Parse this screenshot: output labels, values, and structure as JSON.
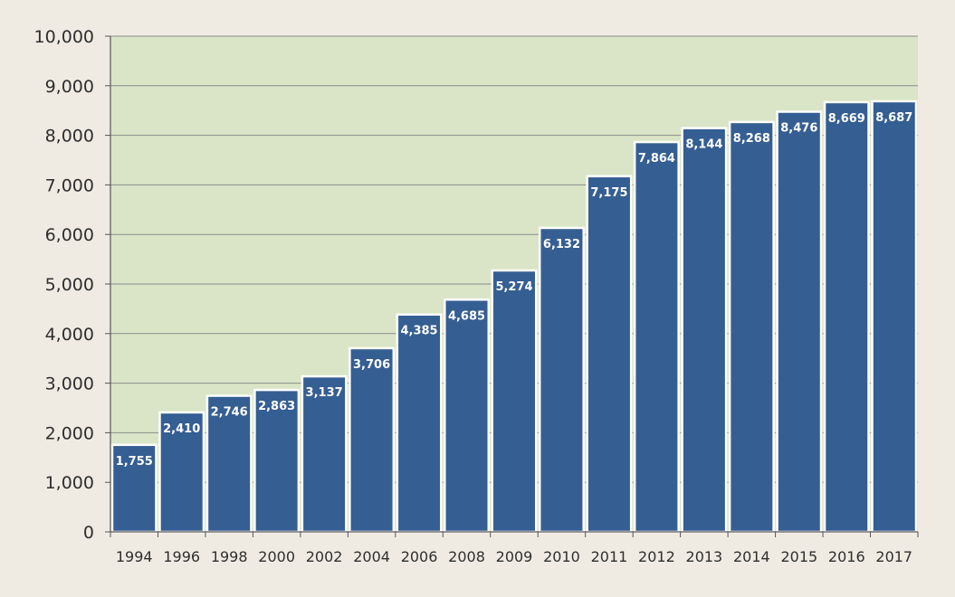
{
  "chart_data": {
    "type": "bar",
    "title": "",
    "xlabel": "",
    "ylabel": "",
    "categories": [
      "1994",
      "1996",
      "1998",
      "2000",
      "2002",
      "2004",
      "2006",
      "2008",
      "2009",
      "2010",
      "2011",
      "2012",
      "2013",
      "2014",
      "2015",
      "2016",
      "2017"
    ],
    "values": [
      1755,
      2410,
      2746,
      2863,
      3137,
      3706,
      4385,
      4685,
      5274,
      6132,
      7175,
      7864,
      8144,
      8268,
      8476,
      8669,
      8687
    ],
    "data_labels": [
      "1,755",
      "2,410",
      "2,746",
      "2,863",
      "3,137",
      "3,706",
      "4,385",
      "4,685",
      "5,274",
      "6,132",
      "7,175",
      "7,864",
      "8,144",
      "8,268",
      "8,476",
      "8,669",
      "8,687"
    ],
    "ylim": [
      0,
      10000
    ],
    "yticks": [
      0,
      1000,
      2000,
      3000,
      4000,
      5000,
      6000,
      7000,
      8000,
      9000,
      10000
    ],
    "ytick_labels": [
      "0",
      "1,000",
      "2,000",
      "3,000",
      "4,000",
      "5,000",
      "6,000",
      "7,000",
      "8,000",
      "9,000",
      "10,000"
    ],
    "grid": true,
    "legend": "none",
    "colors": {
      "bar": "#355e93",
      "bar_edge": "#ffffff",
      "plot_background": "#d9e5c6",
      "page_background": "#efebe2",
      "gridline": "#8c8c8c",
      "axis": "#555555"
    }
  }
}
